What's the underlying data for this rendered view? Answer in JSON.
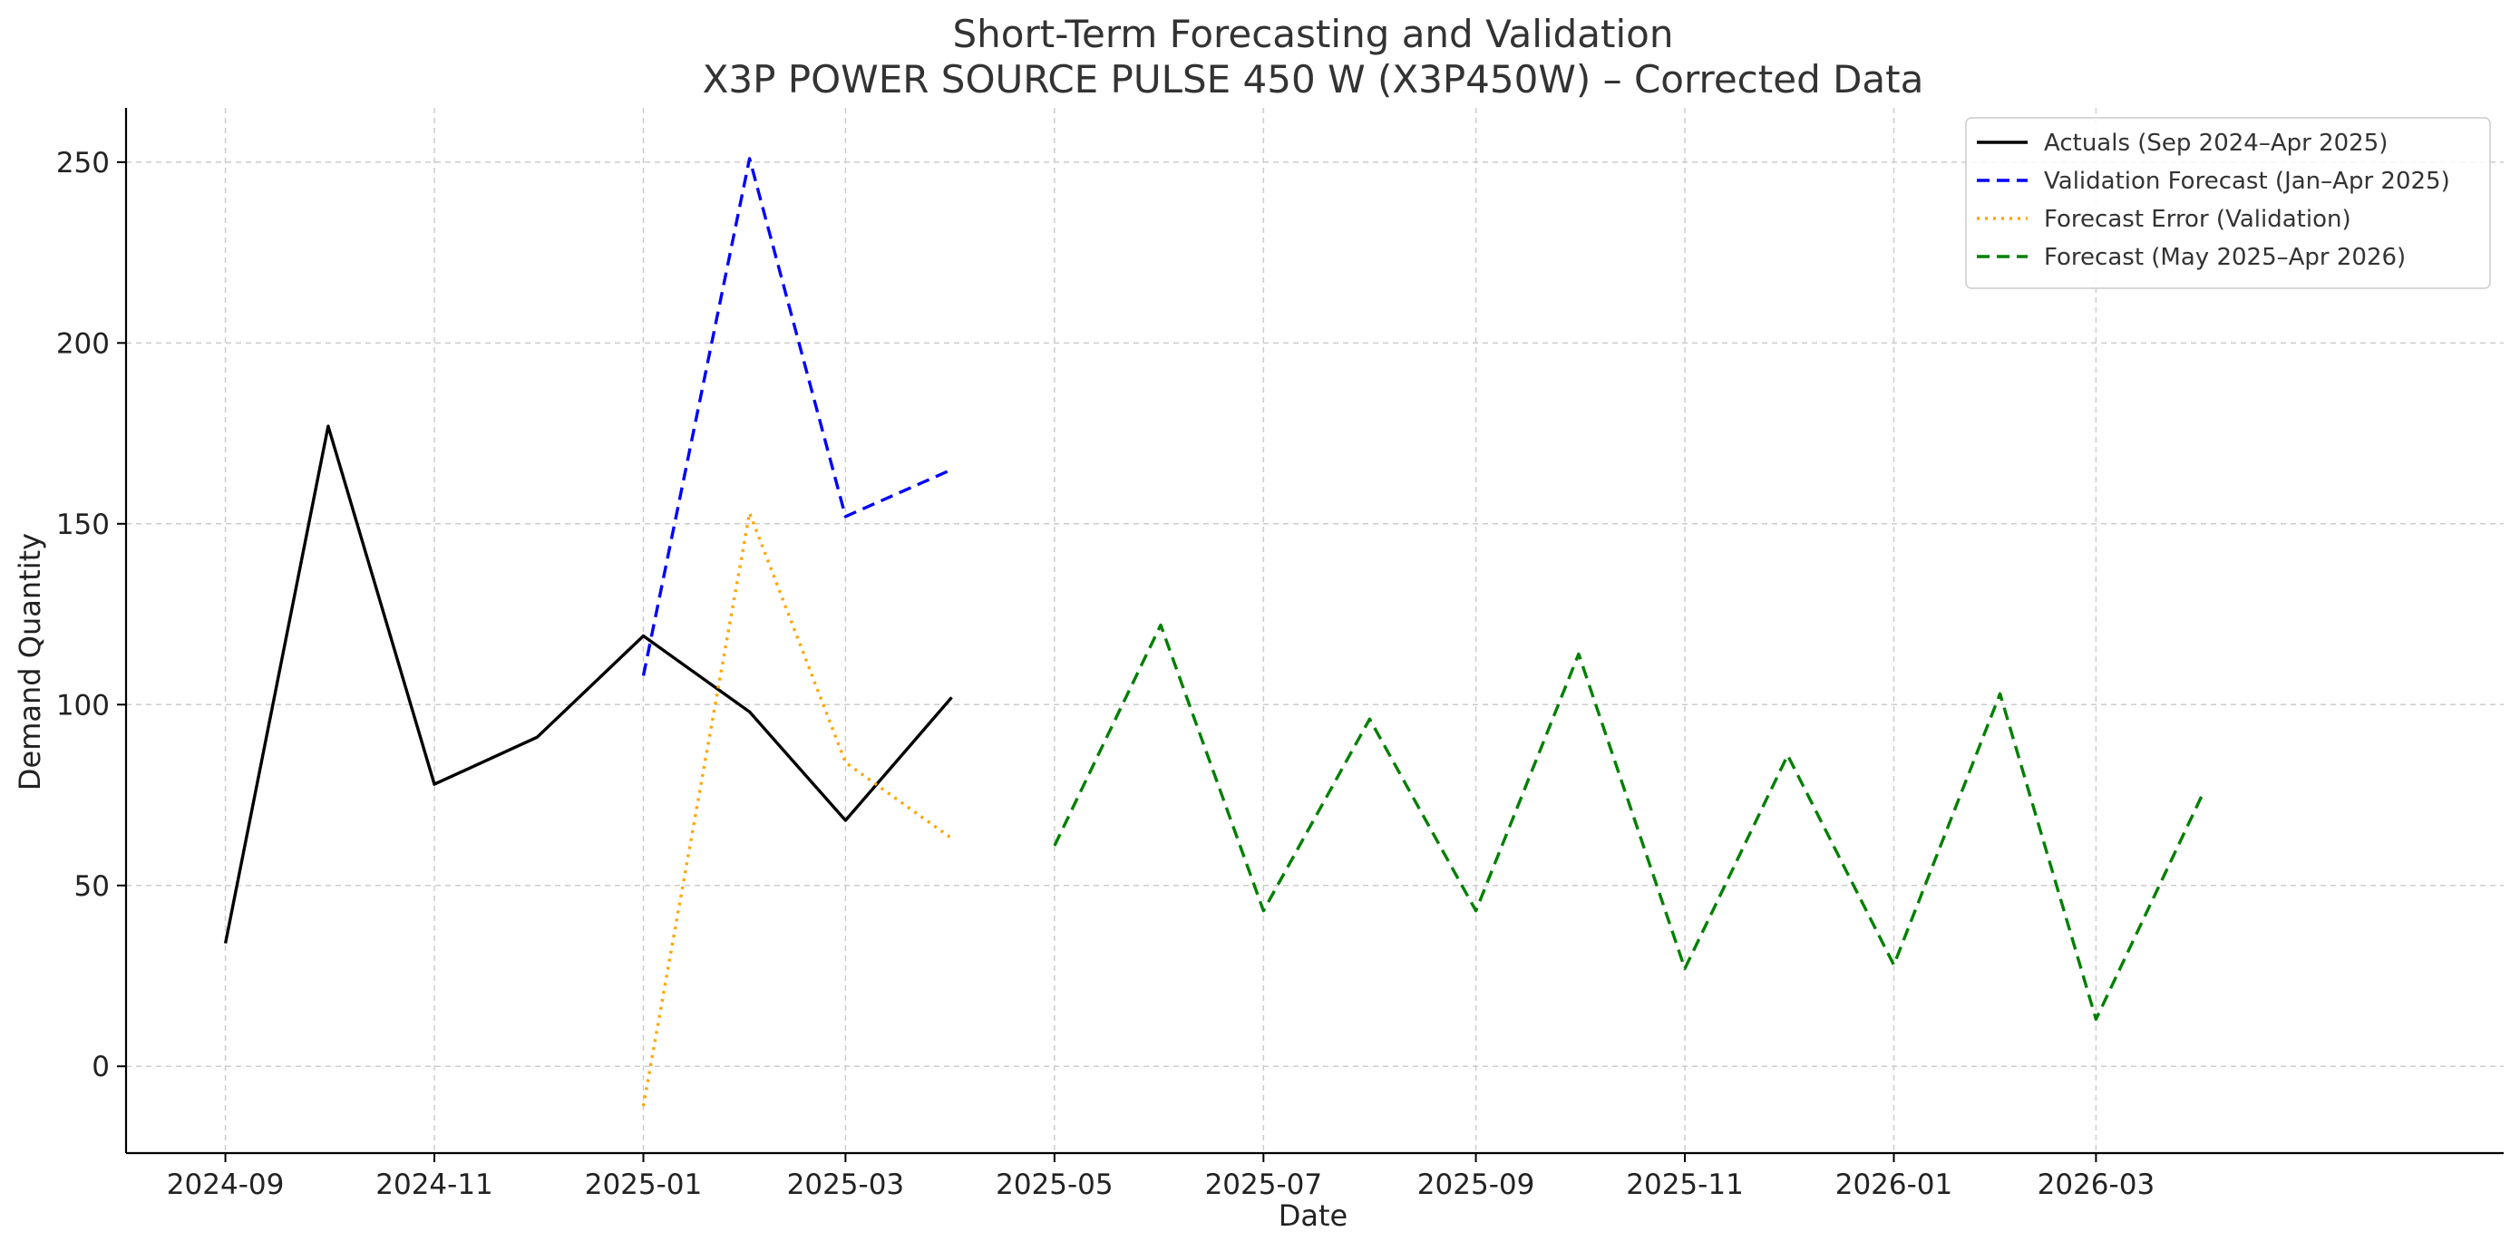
{
  "chart_data": {
    "type": "line",
    "title": "Short-Term Forecasting and Validation",
    "subtitle": "X3P POWER SOURCE PULSE 450 W (X3P450W) – Corrected Data",
    "xlabel": "Date",
    "ylabel": "Demand Quantity",
    "x_type": "date",
    "xlim": [
      "2024-08-03",
      "2026-06-28"
    ],
    "ylim": [
      -24,
      265
    ],
    "x_ticks": [
      "2024-09-01",
      "2024-11-01",
      "2025-01-01",
      "2025-03-01",
      "2025-05-01",
      "2025-07-01",
      "2025-09-01",
      "2025-11-01",
      "2026-01-01",
      "2026-03-01"
    ],
    "x_tick_labels": [
      "2024-09",
      "2024-11",
      "2025-01",
      "2025-03",
      "2025-05",
      "2025-07",
      "2025-09",
      "2025-11",
      "2026-01",
      "2026-03"
    ],
    "y_ticks": [
      0,
      50,
      100,
      150,
      200,
      250
    ],
    "y_tick_labels": [
      "0",
      "50",
      "100",
      "150",
      "200",
      "250"
    ],
    "grid": true,
    "legend_position": "top-right",
    "series": [
      {
        "name": "Actuals (Sep 2024–Apr 2025)",
        "color": "#000000",
        "style": "solid",
        "x": [
          "2024-09-01",
          "2024-10-01",
          "2024-11-01",
          "2024-12-01",
          "2025-01-01",
          "2025-02-01",
          "2025-03-01",
          "2025-04-01"
        ],
        "y": [
          34,
          177,
          78,
          91,
          119,
          98,
          68,
          102
        ]
      },
      {
        "name": "Validation Forecast (Jan–Apr 2025)",
        "color": "#0000ff",
        "style": "dashed",
        "x": [
          "2025-01-01",
          "2025-02-01",
          "2025-03-01",
          "2025-04-01"
        ],
        "y": [
          108,
          251,
          152,
          165
        ]
      },
      {
        "name": "Forecast Error (Validation)",
        "color": "#ffa500",
        "style": "dotted",
        "x": [
          "2025-01-01",
          "2025-02-01",
          "2025-03-01",
          "2025-04-01"
        ],
        "y": [
          -11,
          153,
          84,
          63
        ]
      },
      {
        "name": "Forecast (May 2025–Apr 2026)",
        "color": "#008000",
        "style": "dashed",
        "x": [
          "2025-05-01",
          "2025-06-01",
          "2025-07-01",
          "2025-08-01",
          "2025-09-01",
          "2025-10-01",
          "2025-11-01",
          "2025-12-01",
          "2026-01-01",
          "2026-02-01",
          "2026-03-01",
          "2026-04-01"
        ],
        "y": [
          61,
          122,
          43,
          96,
          43,
          114,
          27,
          86,
          28,
          103,
          13,
          75
        ]
      }
    ]
  }
}
